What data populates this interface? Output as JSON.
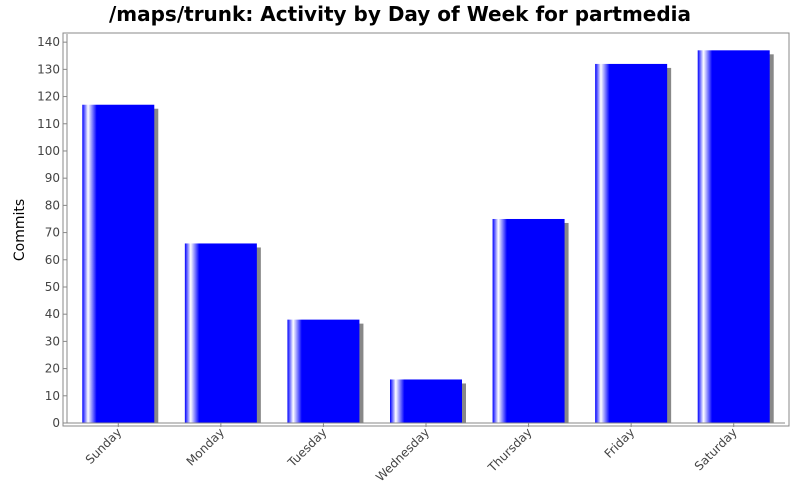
{
  "chart_data": {
    "type": "bar",
    "title": "/maps/trunk: Activity by Day of Week for partmedia",
    "xlabel": "",
    "ylabel": "Commits",
    "categories": [
      "Sunday",
      "Monday",
      "Tuesday",
      "Wednesday",
      "Thursday",
      "Friday",
      "Saturday"
    ],
    "values": [
      117,
      66,
      38,
      16,
      75,
      132,
      137
    ],
    "ylim": [
      0,
      143
    ],
    "yticks": [
      0,
      10,
      20,
      30,
      40,
      50,
      60,
      70,
      80,
      90,
      100,
      110,
      120,
      130,
      140
    ],
    "grid": false,
    "colors": {
      "bar": "#0000ff",
      "shadow": "#888888",
      "axis": "#888888"
    }
  }
}
